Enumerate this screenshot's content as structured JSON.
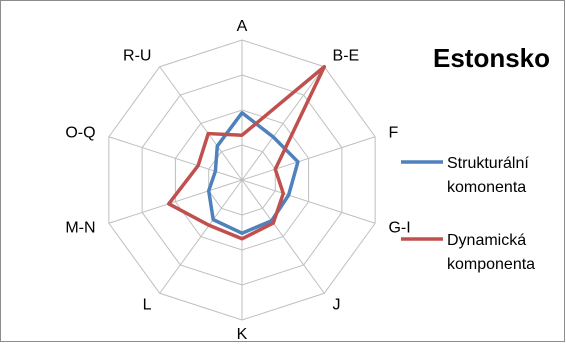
{
  "chart_data": {
    "type": "radar",
    "title": "Estonsko",
    "categories": [
      "A",
      "B-E",
      "F",
      "G-I",
      "J",
      "K",
      "L",
      "M-N",
      "O-Q",
      "R-U"
    ],
    "rmax": 1.0,
    "rings": 4,
    "legend_position": "right",
    "series": [
      {
        "name": "Strukturální komonenta",
        "color": "#4f81bd",
        "values": [
          0.48,
          0.38,
          0.42,
          0.35,
          0.36,
          0.38,
          0.35,
          0.25,
          0.2,
          0.3
        ]
      },
      {
        "name": "Dynamická komponenta",
        "color": "#c0504d",
        "values": [
          0.32,
          1.0,
          0.25,
          0.31,
          0.38,
          0.42,
          0.4,
          0.55,
          0.33,
          0.41
        ]
      }
    ]
  }
}
